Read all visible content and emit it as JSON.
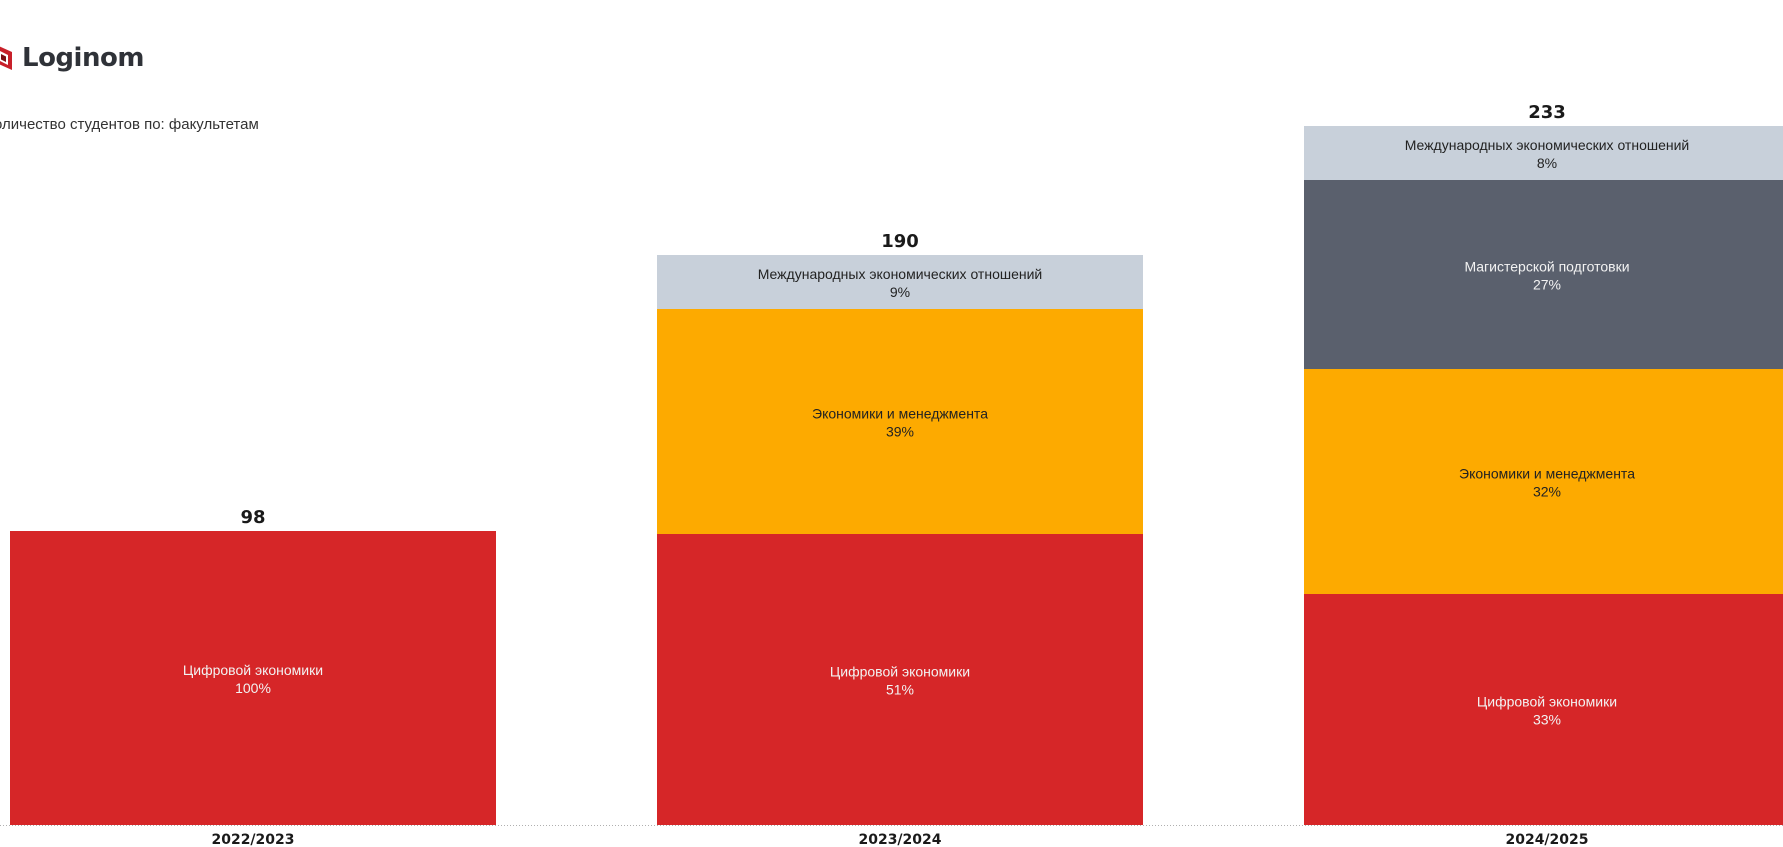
{
  "brand": {
    "name": "Loginom",
    "icon": "loginom-logo-icon",
    "color": "#c8202a"
  },
  "subtitle": "оличество студентов по: факультетам",
  "colors": {
    "Цифровой экономики": "#d62628",
    "Экономики и менеджмента": "#fdaa00",
    "Магистерской подготовки": "#5a606d",
    "Международных экономических отношений": "#c8d0da"
  },
  "chart_data": {
    "type": "bar",
    "stacked": true,
    "categories": [
      "2022/2023",
      "2023/2024",
      "2024/2025"
    ],
    "totals": [
      98,
      190,
      233
    ],
    "series": [
      {
        "name": "Цифровой экономики",
        "values": [
          98,
          97,
          77
        ],
        "percent_labels": [
          "100%",
          "51%",
          "33%"
        ]
      },
      {
        "name": "Экономики и менеджмента",
        "values": [
          0,
          75,
          75
        ],
        "percent_labels": [
          "",
          "39%",
          "32%"
        ]
      },
      {
        "name": "Магистерской подготовки",
        "values": [
          0,
          0,
          63
        ],
        "percent_labels": [
          "",
          "",
          "27%"
        ]
      },
      {
        "name": "Международных экономических отношений",
        "values": [
          0,
          18,
          18
        ],
        "percent_labels": [
          "",
          "9%",
          "8%"
        ]
      }
    ],
    "ylim": [
      0,
      240
    ],
    "grid": false,
    "legend": "none"
  }
}
